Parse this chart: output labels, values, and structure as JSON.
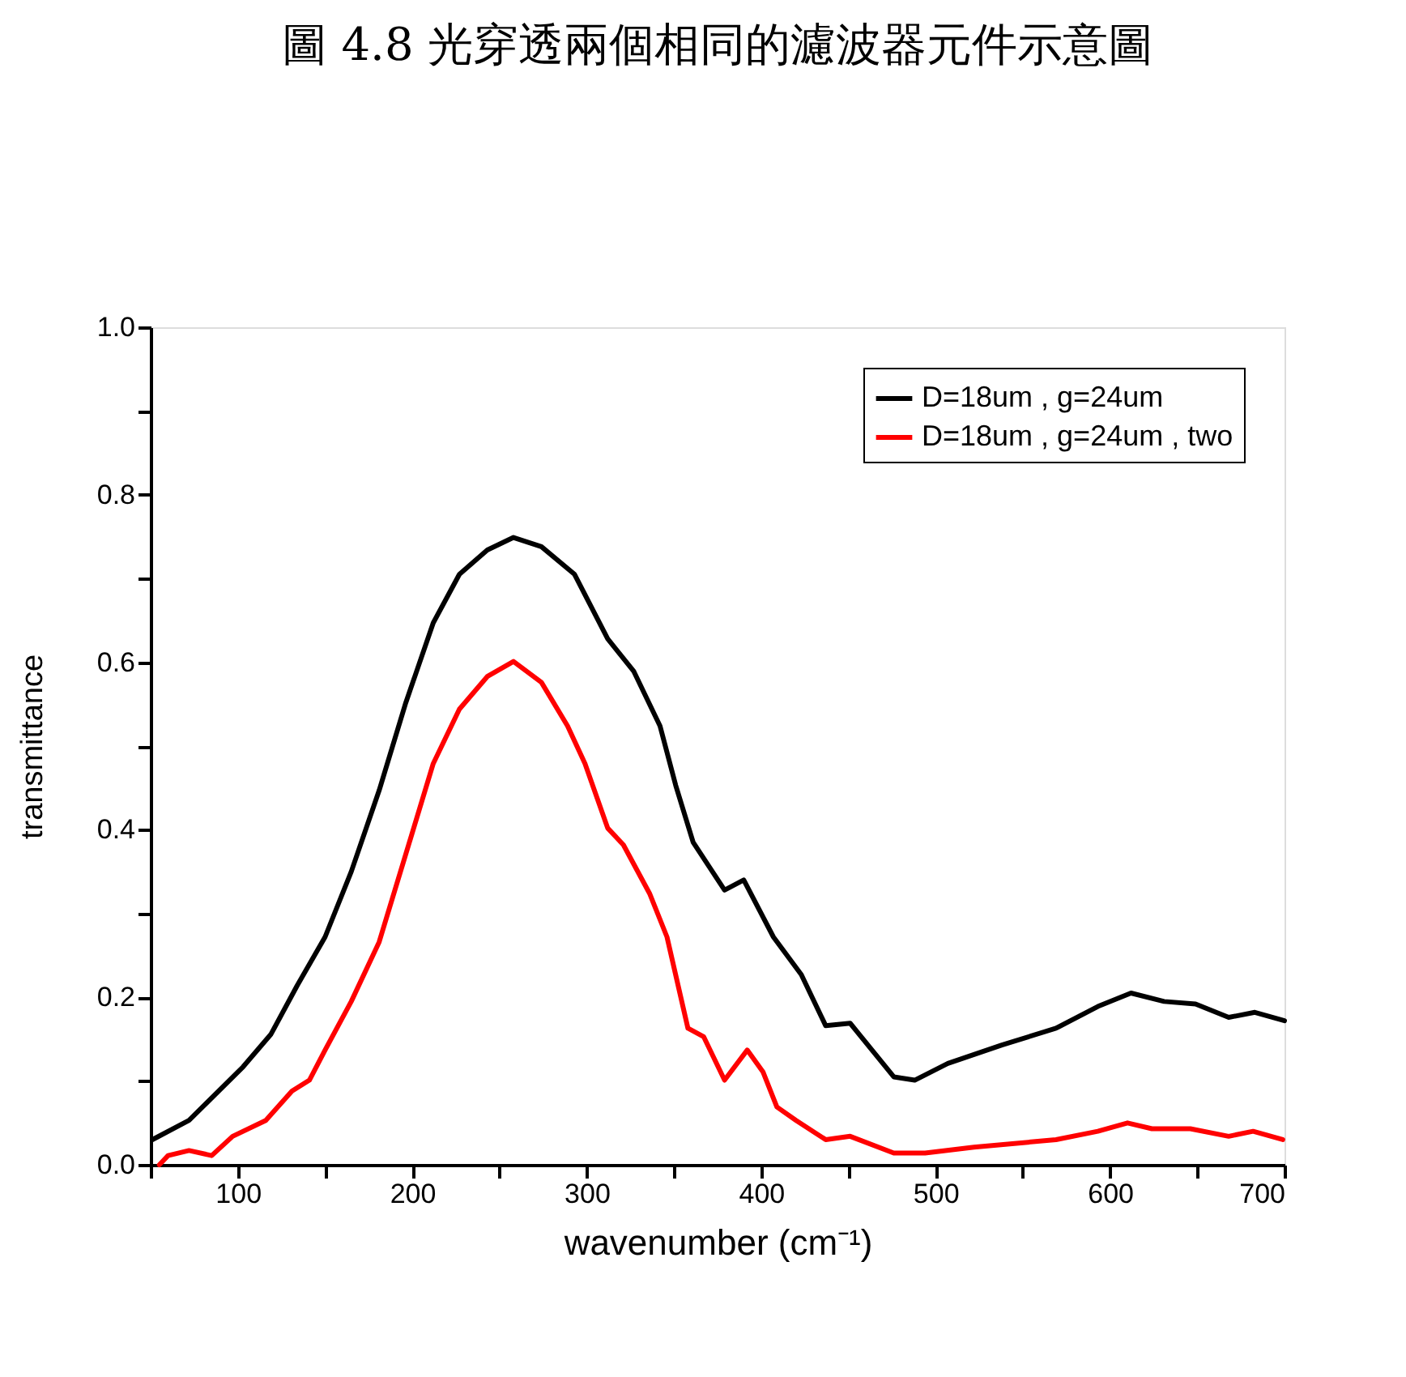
{
  "chart_data": {
    "type": "line",
    "title": "圖 4.8 光穿透兩個相同的濾波器元件示意圖",
    "xlabel": "wavenumber (cm⁻¹)",
    "ylabel": "transmittance",
    "xlim": [
      50,
      700
    ],
    "ylim": [
      0,
      1.0
    ],
    "xticks": [
      {
        "value": 50,
        "label": null
      },
      100,
      {
        "value": 150,
        "label": null
      },
      200,
      {
        "value": 250,
        "label": null
      },
      300,
      {
        "value": 350,
        "label": null
      },
      400,
      {
        "value": 450,
        "label": null
      },
      500,
      {
        "value": 550,
        "label": null
      },
      600,
      {
        "value": 650,
        "label": null
      },
      700
    ],
    "yticks": [
      {
        "value": 0,
        "label": "0.0"
      },
      {
        "value": 0.1,
        "label": null
      },
      0.2,
      {
        "value": 0.3,
        "label": null
      },
      0.4,
      {
        "value": 0.5,
        "label": null
      },
      0.6,
      {
        "value": 0.7,
        "label": null
      },
      0.8,
      {
        "value": 0.9,
        "label": null
      },
      {
        "value": 1.0,
        "label": "1.0"
      }
    ],
    "grid": false,
    "legend": "top right",
    "line_style": "solid",
    "marker": "none",
    "series": [
      {
        "name": "D=18um , g=24um",
        "color": "#000000",
        "x": [
          51,
          72,
          103,
          119,
          134,
          150,
          165,
          181,
          196,
          212,
          227,
          243,
          258,
          274,
          293,
          312,
          327,
          342,
          351,
          361,
          379,
          390,
          407,
          423,
          437,
          451,
          476,
          488,
          507,
          538,
          569,
          593,
          612,
          631,
          649,
          668,
          683,
          700
        ],
        "values": [
          0.03,
          0.053,
          0.117,
          0.156,
          0.214,
          0.272,
          0.35,
          0.447,
          0.55,
          0.647,
          0.705,
          0.734,
          0.749,
          0.738,
          0.705,
          0.628,
          0.589,
          0.524,
          0.453,
          0.385,
          0.328,
          0.34,
          0.272,
          0.227,
          0.166,
          0.169,
          0.105,
          0.101,
          0.121,
          0.143,
          0.163,
          0.189,
          0.205,
          0.195,
          0.192,
          0.176,
          0.182,
          0.172
        ]
      },
      {
        "name": "D=18um , g=24um , two",
        "color": "#ff0000",
        "x": [
          55,
          60,
          72,
          85,
          97,
          116,
          131,
          141,
          150,
          165,
          181,
          196,
          212,
          227,
          243,
          258,
          274,
          289,
          299,
          312,
          321,
          336,
          346,
          358,
          367,
          379,
          392,
          401,
          409,
          420,
          437,
          451,
          476,
          494,
          522,
          569,
          593,
          610,
          624,
          646,
          668,
          682,
          699
        ],
        "values": [
          0.0,
          0.011,
          0.017,
          0.011,
          0.034,
          0.053,
          0.088,
          0.101,
          0.137,
          0.195,
          0.266,
          0.369,
          0.479,
          0.544,
          0.583,
          0.601,
          0.576,
          0.524,
          0.479,
          0.402,
          0.382,
          0.324,
          0.272,
          0.163,
          0.153,
          0.101,
          0.137,
          0.111,
          0.069,
          0.053,
          0.03,
          0.034,
          0.014,
          0.014,
          0.021,
          0.03,
          0.04,
          0.05,
          0.043,
          0.043,
          0.034,
          0.04,
          0.03
        ]
      }
    ]
  }
}
